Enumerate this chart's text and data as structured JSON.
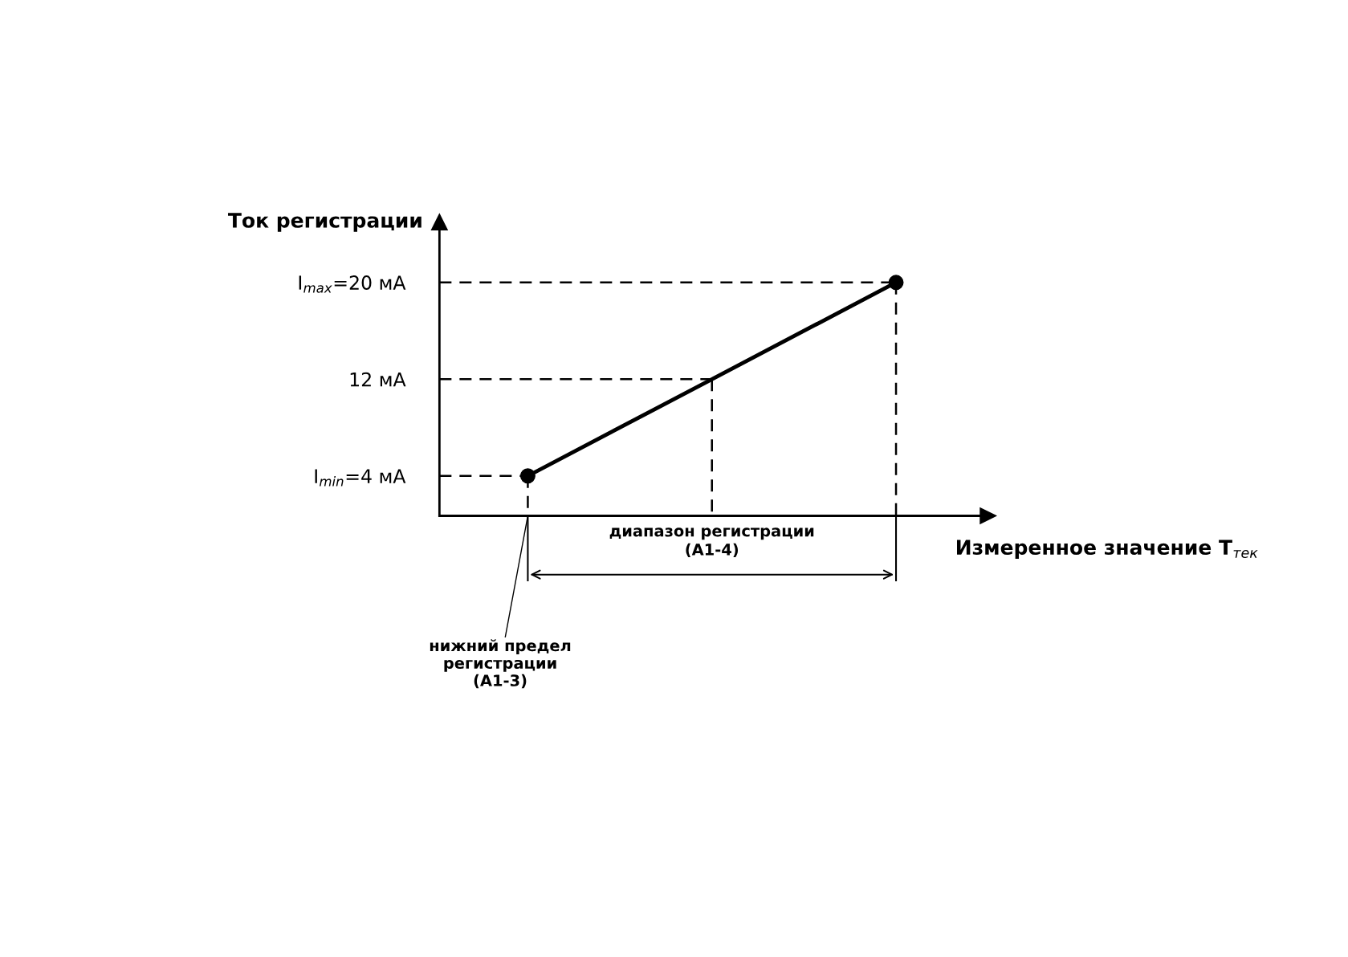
{
  "chart_data": {
    "type": "line",
    "ylabel": "Ток регистрации",
    "xlabel": "Измеренное значение T$_{тек}$",
    "categories": [
      null,
      null,
      null
    ],
    "series": [
      {
        "color": "#000000",
        "values": [
          4,
          12,
          20
        ],
        "marker": "none"
      },
      {
        "type": "scatter",
        "color": "#000000",
        "values": [
          4,
          null,
          20
        ],
        "marker": "circle"
      }
    ],
    "ylim": [
      0.7,
      25
    ],
    "yticks": [
      {
        "value": 4,
        "label": "I$_{min}$=4 мА"
      },
      {
        "value": 12,
        "label": "12 мА"
      },
      {
        "value": 20,
        "label": "I$_{max}$=20 мА"
      }
    ],
    "ref_lines": [
      {
        "axis": "y",
        "value": 4,
        "line_style": "dashed"
      },
      {
        "axis": "y",
        "value": 12,
        "line_style": "dashed"
      },
      {
        "axis": "y",
        "value": 20,
        "line_style": "dashed"
      }
    ],
    "annotations": [
      "диапазон регистрации\n(A1-4)",
      "нижний предел\nрегистрации\n(A1-3)"
    ],
    "grid": false,
    "legend": false
  }
}
